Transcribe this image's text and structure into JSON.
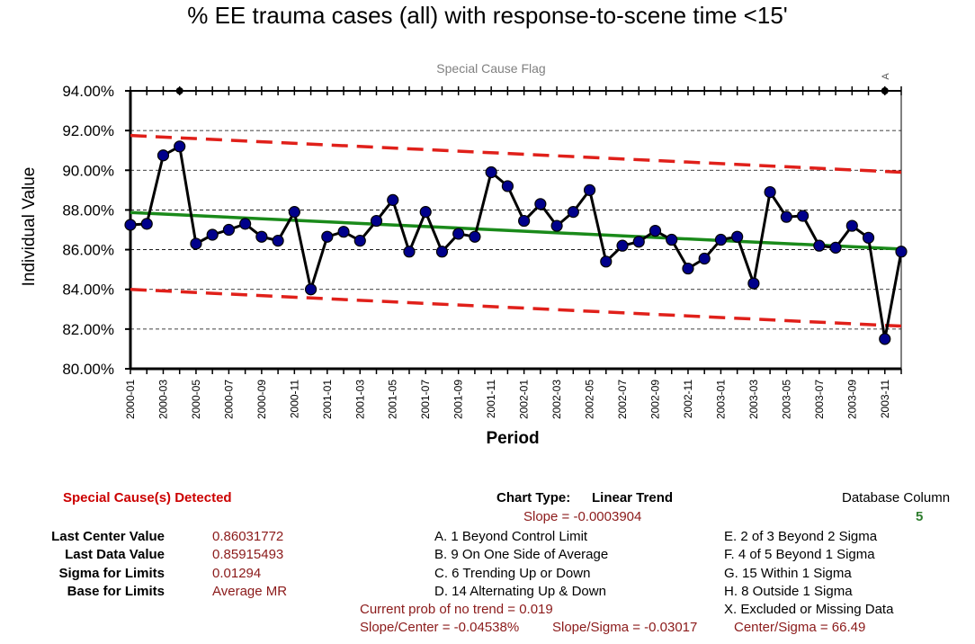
{
  "chart_data": {
    "type": "line",
    "title": "% EE trauma cases (all) with response-to-scene time <15'",
    "xlabel": "Period",
    "ylabel": "Individual Value",
    "flag_label": "Special Cause Flag",
    "flag_marker": "A",
    "ylim": [
      0.8,
      0.94
    ],
    "yticks": [
      "80.00%",
      "82.00%",
      "84.00%",
      "86.00%",
      "88.00%",
      "90.00%",
      "92.00%",
      "94.00%"
    ],
    "grid": true,
    "x_tick_labels": [
      "2000-01",
      "2000-03",
      "2000-05",
      "2000-07",
      "2000-09",
      "2000-11",
      "2001-01",
      "2001-03",
      "2001-05",
      "2001-07",
      "2001-09",
      "2001-11",
      "2002-01",
      "2002-03",
      "2002-05",
      "2002-07",
      "2002-09",
      "2002-11",
      "2003-01",
      "2003-03",
      "2003-05",
      "2003-07",
      "2003-09",
      "2003-11"
    ],
    "periods": [
      "2000-01",
      "2000-02",
      "2000-03",
      "2000-04",
      "2000-05",
      "2000-06",
      "2000-07",
      "2000-08",
      "2000-09",
      "2000-10",
      "2000-11",
      "2000-12",
      "2001-01",
      "2001-02",
      "2001-03",
      "2001-04",
      "2001-05",
      "2001-06",
      "2001-07",
      "2001-08",
      "2001-09",
      "2001-10",
      "2001-11",
      "2001-12",
      "2002-01",
      "2002-02",
      "2002-03",
      "2002-04",
      "2002-05",
      "2002-06",
      "2002-07",
      "2002-08",
      "2002-09",
      "2002-10",
      "2002-11",
      "2002-12",
      "2003-01",
      "2003-02",
      "2003-03",
      "2003-04",
      "2003-05",
      "2003-06",
      "2003-07",
      "2003-08",
      "2003-09",
      "2003-10",
      "2003-11",
      "2003-12"
    ],
    "series": [
      {
        "values": [
          0.8725,
          0.873,
          0.9075,
          0.912,
          0.863,
          0.8675,
          0.87,
          0.873,
          0.8665,
          0.8645,
          0.879,
          0.84,
          0.8665,
          0.869,
          0.8645,
          0.8745,
          0.885,
          0.859,
          0.879,
          0.859,
          0.868,
          0.8665,
          0.899,
          0.892,
          0.8745,
          0.883,
          0.872,
          0.879,
          0.89,
          0.854,
          0.862,
          0.864,
          0.8695,
          0.865,
          0.8505,
          0.8555,
          0.865,
          0.8665,
          0.843,
          0.889,
          0.8765,
          0.877,
          0.862,
          0.861,
          0.872,
          0.866,
          0.815,
          0.859
        ]
      },
      {
        "role": "center",
        "start": 0.8787,
        "end": 0.8603
      },
      {
        "role": "ucl",
        "start": 0.9175,
        "end": 0.899
      },
      {
        "role": "lcl",
        "start": 0.84,
        "end": 0.8215
      }
    ],
    "flagged_periods": [
      "2000-04",
      "2003-11"
    ]
  },
  "info": {
    "special_cause": "Special Cause(s) Detected",
    "chart_type_label": "Chart Type:",
    "chart_type_value": "Linear Trend",
    "slope": "Slope = -0.0003904",
    "db_column_label": "Database Column",
    "db_column_value": "5",
    "stats": [
      {
        "label": "Last Center Value",
        "value": "0.86031772"
      },
      {
        "label": "Last Data Value",
        "value": "0.85915493"
      },
      {
        "label": "Sigma for Limits",
        "value": "0.01294"
      },
      {
        "label": "Base for Limits",
        "value": "Average MR"
      }
    ],
    "rules_left": [
      "A.  1 Beyond Control Limit",
      "B.  9 On One Side of Average",
      "C.  6 Trending Up or Down",
      "D.  14 Alternating  Up & Down"
    ],
    "rules_right": [
      "E.   2 of 3 Beyond 2 Sigma",
      "F.   4 of 5 Beyond 1 Sigma",
      "G.   15 Within 1 Sigma",
      "H.   8 Outside 1 Sigma",
      "X.   Excluded or Missing Data"
    ],
    "prob_no_trend": "Current prob of no trend = 0.019",
    "slope_center": "Slope/Center = -0.04538%",
    "slope_sigma": "Slope/Sigma = -0.03017",
    "center_sigma": "Center/Sigma = 66.49"
  },
  "colors": {
    "data": "#000000",
    "marker": "#00008b",
    "center": "#1a8a1a",
    "limits": "#e0201a",
    "info_value": "#8b1a1a"
  }
}
